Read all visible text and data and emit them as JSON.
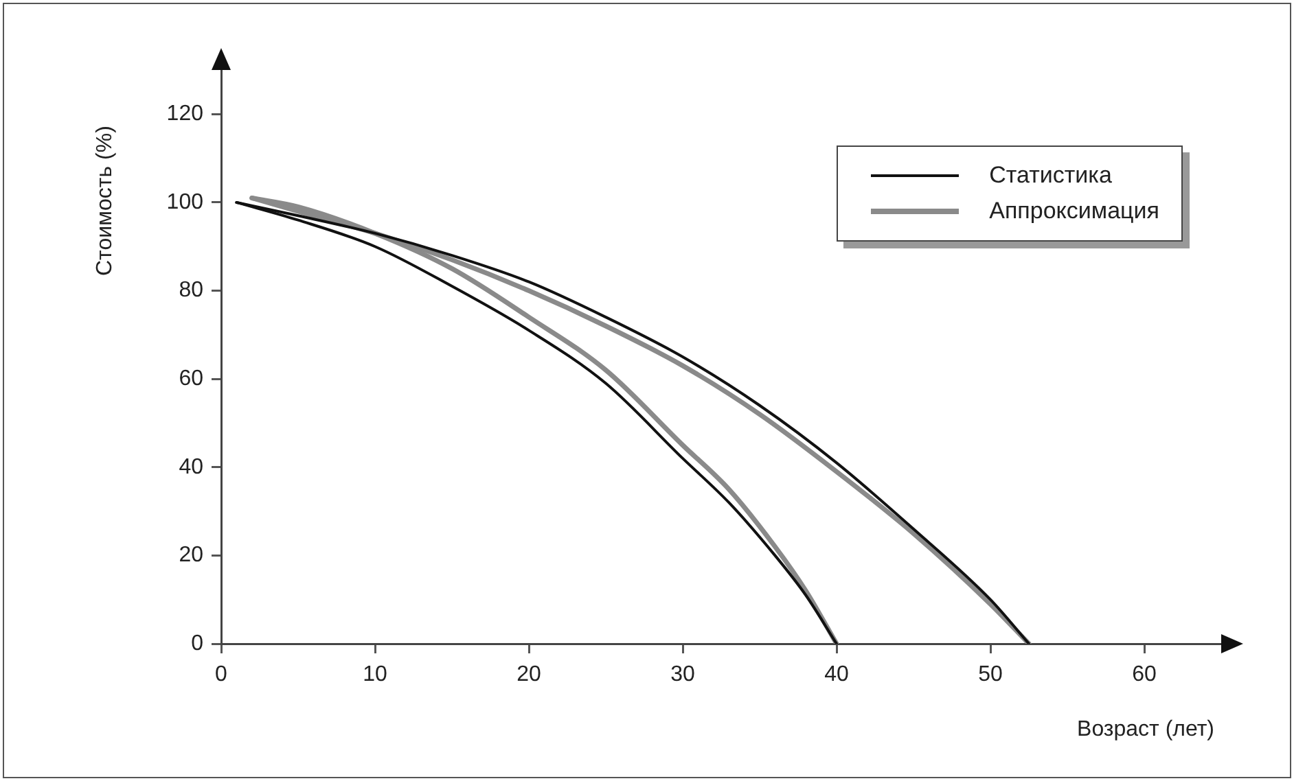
{
  "chart_data": {
    "type": "line",
    "xlabel": "Возраст (лет)",
    "ylabel": "Стоимость (%)",
    "xlim": [
      0,
      65
    ],
    "xticks": [
      0,
      10,
      20,
      30,
      40,
      50,
      60
    ],
    "ylim": [
      0,
      130
    ],
    "yticks": [
      0,
      20,
      40,
      60,
      80,
      100,
      120
    ],
    "legend": "top right",
    "marker": "none",
    "line_style": "solid",
    "series": [
      {
        "name": "Статистика",
        "color": "#111111",
        "x": [
          1,
          5,
          10,
          15,
          20,
          25,
          30,
          33,
          36,
          38,
          40
        ],
        "values": [
          100,
          96,
          90,
          81,
          71,
          59,
          42,
          32,
          20,
          11,
          0
        ]
      },
      {
        "name": "Аппроксимация",
        "color": "#8a8a8a",
        "x": [
          2,
          5,
          10,
          15,
          20,
          25,
          30,
          33,
          36,
          38,
          40
        ],
        "values": [
          101,
          99,
          93,
          85,
          74,
          62,
          45,
          35,
          22,
          12,
          0
        ]
      },
      {
        "color": "#111111",
        "x": [
          1,
          5,
          10,
          15,
          20,
          25,
          30,
          35,
          40,
          45,
          50,
          52.5
        ],
        "values": [
          100,
          97,
          93,
          88,
          82,
          74,
          65,
          54,
          41,
          26,
          10,
          0
        ]
      },
      {
        "color": "#8a8a8a",
        "x": [
          2,
          5,
          10,
          15,
          20,
          25,
          30,
          35,
          40,
          45,
          50,
          52.5
        ],
        "values": [
          101,
          98,
          93,
          87,
          80,
          72,
          63,
          52,
          39,
          25,
          9,
          0
        ]
      }
    ]
  }
}
